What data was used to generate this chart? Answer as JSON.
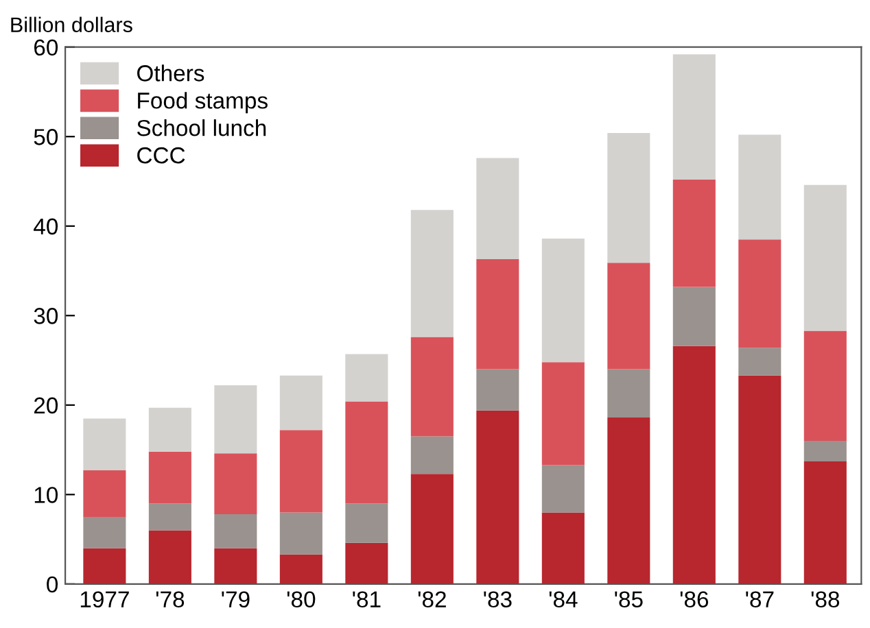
{
  "chart_data": {
    "type": "bar",
    "stacked": true,
    "ylabel": "Billion dollars",
    "categories": [
      "1977",
      "'78",
      "'79",
      "'80",
      "'81",
      "'82",
      "'83",
      "'84",
      "'85",
      "'86",
      "'87",
      "'88"
    ],
    "series": [
      {
        "name": "CCC",
        "color": "#b8262e",
        "values": [
          4,
          6,
          4,
          3.3,
          4.6,
          12.3,
          19.4,
          8,
          18.6,
          26.6,
          23.3,
          13.7
        ]
      },
      {
        "name": "School lunch",
        "color": "#9a928e",
        "values": [
          3.5,
          3,
          3.8,
          4.7,
          4.4,
          4.2,
          4.6,
          5.3,
          5.4,
          6.6,
          3.1,
          2.3
        ]
      },
      {
        "name": "Food stamps",
        "color": "#d9525a",
        "values": [
          5.2,
          5.8,
          6.8,
          9.2,
          11.4,
          11.1,
          12.3,
          11.5,
          11.9,
          12,
          12.1,
          12.3
        ]
      },
      {
        "name": "Others",
        "color": "#d4d2cf",
        "values": [
          5.8,
          4.9,
          7.6,
          6.1,
          5.3,
          14.2,
          11.3,
          13.8,
          14.5,
          14,
          11.7,
          16.3
        ]
      }
    ],
    "ylim": [
      0,
      60
    ],
    "yticks": [
      0,
      10,
      20,
      30,
      40,
      50,
      60
    ],
    "grid": false,
    "legend": "top left"
  }
}
